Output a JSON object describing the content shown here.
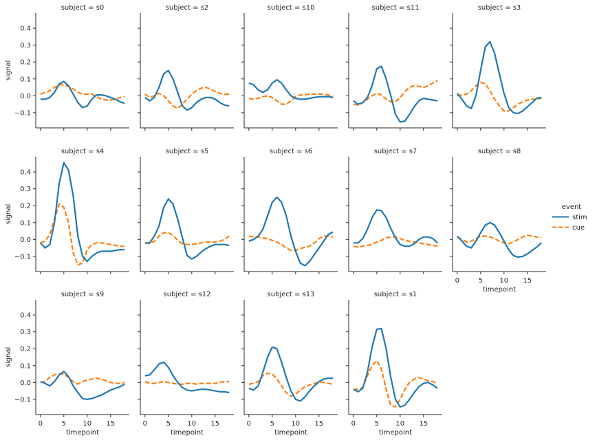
{
  "chart_data": {
    "type": "line",
    "title_prefix": "subject = ",
    "xlabel": "timepoint",
    "ylabel": "signal",
    "xlim": [
      -1,
      19
    ],
    "ylim": [
      -0.19,
      0.49
    ],
    "xticks": [
      0,
      5,
      10,
      15
    ],
    "yticks": [
      -0.1,
      0.0,
      0.1,
      0.2,
      0.3,
      0.4
    ],
    "ytick_labels": [
      "−0.1",
      "0.0",
      "0.1",
      "0.2",
      "0.3",
      "0.4"
    ],
    "x": [
      0,
      1,
      2,
      3,
      4,
      5,
      6,
      7,
      8,
      9,
      10,
      11,
      12,
      13,
      14,
      15,
      16,
      17,
      18
    ],
    "legend": {
      "title": "event",
      "placement": "right",
      "entries": [
        {
          "name": "stim",
          "color": "#1f77b4",
          "style": "solid"
        },
        {
          "name": "cue",
          "color": "#ff7f0e",
          "style": "dashed"
        }
      ]
    },
    "facets": [
      {
        "subject": "s0",
        "stim": [
          -0.02,
          -0.02,
          -0.01,
          0.02,
          0.07,
          0.085,
          0.06,
          0.01,
          -0.04,
          -0.07,
          -0.06,
          -0.02,
          0.005,
          0.005,
          0.0,
          -0.01,
          -0.02,
          -0.035,
          -0.045
        ],
        "cue": [
          0.01,
          0.02,
          0.03,
          0.05,
          0.065,
          0.065,
          0.055,
          0.04,
          0.02,
          0.01,
          0.01,
          0.01,
          -0.005,
          -0.02,
          -0.025,
          -0.025,
          -0.02,
          -0.01,
          -0.005
        ]
      },
      {
        "subject": "s2",
        "stim": [
          -0.01,
          -0.03,
          -0.01,
          0.05,
          0.13,
          0.15,
          0.1,
          0.02,
          -0.06,
          -0.085,
          -0.07,
          -0.04,
          -0.02,
          -0.01,
          -0.01,
          -0.02,
          -0.04,
          -0.055,
          -0.06
        ],
        "cue": [
          0.01,
          -0.01,
          0.0,
          0.015,
          0.0,
          -0.03,
          -0.06,
          -0.075,
          -0.05,
          -0.02,
          0.01,
          0.03,
          0.045,
          0.05,
          0.04,
          0.025,
          0.015,
          0.01,
          0.01
        ]
      },
      {
        "subject": "s10",
        "stim": [
          0.075,
          0.065,
          0.035,
          0.02,
          0.035,
          0.075,
          0.095,
          0.075,
          0.035,
          0.0,
          -0.015,
          -0.02,
          -0.02,
          -0.015,
          -0.01,
          -0.005,
          -0.005,
          -0.005,
          -0.01
        ],
        "cue": [
          -0.015,
          -0.02,
          -0.015,
          -0.005,
          0.0,
          -0.01,
          -0.03,
          -0.05,
          -0.05,
          -0.03,
          -0.005,
          0.005,
          0.005,
          0.01,
          0.01,
          0.01,
          0.01,
          0.005,
          -0.005
        ]
      },
      {
        "subject": "s11",
        "stim": [
          -0.03,
          -0.05,
          -0.04,
          -0.01,
          0.06,
          0.16,
          0.175,
          0.1,
          0.0,
          -0.11,
          -0.155,
          -0.15,
          -0.11,
          -0.065,
          -0.03,
          -0.015,
          -0.02,
          -0.025,
          -0.03
        ],
        "cue": [
          -0.05,
          -0.055,
          -0.04,
          -0.02,
          0.0,
          0.015,
          0.005,
          -0.02,
          -0.035,
          -0.035,
          -0.01,
          0.025,
          0.05,
          0.06,
          0.055,
          0.05,
          0.06,
          0.075,
          0.09
        ]
      },
      {
        "subject": "s3",
        "stim": [
          0.015,
          -0.02,
          -0.06,
          -0.075,
          0.0,
          0.15,
          0.29,
          0.32,
          0.25,
          0.13,
          0.015,
          -0.07,
          -0.1,
          -0.105,
          -0.09,
          -0.065,
          -0.04,
          -0.015,
          -0.01
        ],
        "cue": [
          0.0,
          0.005,
          0.01,
          0.03,
          0.06,
          0.08,
          0.07,
          0.03,
          -0.02,
          -0.06,
          -0.09,
          -0.09,
          -0.07,
          -0.05,
          -0.035,
          -0.025,
          -0.02,
          -0.02,
          -0.015
        ]
      },
      {
        "subject": "s4",
        "stim": [
          -0.02,
          -0.05,
          -0.03,
          0.1,
          0.33,
          0.455,
          0.41,
          0.26,
          0.02,
          -0.1,
          -0.13,
          -0.1,
          -0.08,
          -0.07,
          -0.07,
          -0.07,
          -0.065,
          -0.06,
          -0.06
        ],
        "cue": [
          -0.02,
          -0.01,
          0.03,
          0.12,
          0.21,
          0.19,
          0.1,
          -0.08,
          -0.15,
          -0.14,
          -0.06,
          -0.03,
          -0.02,
          -0.02,
          -0.025,
          -0.03,
          -0.035,
          -0.04,
          -0.04
        ]
      },
      {
        "subject": "s5",
        "stim": [
          -0.02,
          -0.02,
          0.02,
          0.08,
          0.19,
          0.24,
          0.21,
          0.12,
          0.01,
          -0.095,
          -0.115,
          -0.1,
          -0.075,
          -0.055,
          -0.04,
          -0.03,
          -0.03,
          -0.03,
          -0.035
        ],
        "cue": [
          -0.02,
          -0.025,
          -0.01,
          0.02,
          0.04,
          0.04,
          0.025,
          -0.005,
          -0.025,
          -0.03,
          -0.03,
          -0.025,
          -0.02,
          -0.015,
          -0.015,
          -0.015,
          -0.01,
          0.0,
          0.02
        ]
      },
      {
        "subject": "s6",
        "stim": [
          -0.01,
          0.0,
          0.02,
          0.06,
          0.14,
          0.22,
          0.25,
          0.22,
          0.14,
          0.02,
          -0.07,
          -0.14,
          -0.155,
          -0.13,
          -0.09,
          -0.05,
          -0.01,
          0.03,
          0.045
        ],
        "cue": [
          0.02,
          0.015,
          0.015,
          0.01,
          0.005,
          -0.005,
          -0.015,
          -0.03,
          -0.05,
          -0.065,
          -0.065,
          -0.055,
          -0.045,
          -0.04,
          -0.02,
          0.005,
          0.02,
          0.02,
          0.015
        ]
      },
      {
        "subject": "s7",
        "stim": [
          -0.02,
          -0.02,
          0.005,
          0.06,
          0.13,
          0.175,
          0.17,
          0.13,
          0.065,
          0.01,
          -0.03,
          -0.04,
          -0.04,
          -0.025,
          0.0,
          0.015,
          0.015,
          0.005,
          -0.02
        ],
        "cue": [
          -0.04,
          -0.045,
          -0.04,
          -0.035,
          -0.03,
          -0.015,
          -0.005,
          0.01,
          0.015,
          0.015,
          0.005,
          -0.005,
          -0.01,
          -0.015,
          -0.02,
          -0.025,
          -0.03,
          -0.035,
          -0.04
        ]
      },
      {
        "subject": "s8",
        "stim": [
          0.02,
          -0.01,
          -0.04,
          -0.05,
          -0.01,
          0.04,
          0.085,
          0.1,
          0.085,
          0.04,
          -0.01,
          -0.06,
          -0.095,
          -0.105,
          -0.1,
          -0.085,
          -0.065,
          -0.045,
          -0.02
        ],
        "cue": [
          0.015,
          0.0,
          -0.015,
          -0.01,
          0.005,
          0.02,
          0.02,
          0.015,
          0.005,
          -0.01,
          -0.02,
          -0.025,
          -0.015,
          0.0,
          0.015,
          0.025,
          0.02,
          0.015,
          0.01
        ]
      },
      {
        "subject": "s9",
        "stim": [
          0.005,
          -0.005,
          -0.02,
          0.005,
          0.045,
          0.065,
          0.035,
          -0.02,
          -0.06,
          -0.095,
          -0.1,
          -0.095,
          -0.085,
          -0.075,
          -0.06,
          -0.045,
          -0.035,
          -0.025,
          -0.01
        ],
        "cue": [
          0.0,
          0.005,
          0.03,
          0.045,
          0.05,
          0.05,
          0.03,
          0.005,
          -0.01,
          0.005,
          0.015,
          0.02,
          0.025,
          0.02,
          0.01,
          0.0,
          -0.005,
          -0.005,
          0.0
        ]
      },
      {
        "subject": "s12",
        "stim": [
          0.04,
          0.045,
          0.075,
          0.11,
          0.12,
          0.09,
          0.04,
          0.0,
          -0.03,
          -0.045,
          -0.05,
          -0.045,
          -0.04,
          -0.04,
          -0.045,
          -0.05,
          -0.055,
          -0.055,
          -0.06
        ],
        "cue": [
          0.005,
          -0.005,
          -0.005,
          0.0,
          0.005,
          0.0,
          -0.005,
          -0.01,
          -0.01,
          -0.005,
          -0.005,
          -0.01,
          -0.005,
          -0.005,
          -0.005,
          -0.005,
          0.0,
          0.005,
          0.005
        ]
      },
      {
        "subject": "s13",
        "stim": [
          -0.035,
          -0.045,
          -0.02,
          0.06,
          0.15,
          0.21,
          0.2,
          0.12,
          0.03,
          -0.05,
          -0.1,
          -0.11,
          -0.085,
          -0.05,
          -0.02,
          0.005,
          0.02,
          0.025,
          0.025
        ],
        "cue": [
          -0.01,
          -0.005,
          0.005,
          0.04,
          0.055,
          0.05,
          0.02,
          -0.02,
          -0.06,
          -0.08,
          -0.07,
          -0.045,
          -0.025,
          -0.015,
          -0.005,
          0.0,
          0.0,
          -0.005,
          -0.01
        ]
      },
      {
        "subject": "s1",
        "stim": [
          -0.04,
          -0.055,
          -0.035,
          0.06,
          0.21,
          0.315,
          0.32,
          0.2,
          0.03,
          -0.1,
          -0.145,
          -0.135,
          -0.1,
          -0.06,
          -0.025,
          -0.005,
          0.0,
          -0.015,
          -0.035
        ],
        "cue": [
          -0.04,
          -0.04,
          -0.03,
          0.04,
          0.1,
          0.13,
          0.08,
          -0.04,
          -0.135,
          -0.145,
          -0.1,
          -0.04,
          0.0,
          0.02,
          0.03,
          0.02,
          0.01,
          0.005,
          -0.005
        ]
      }
    ]
  }
}
